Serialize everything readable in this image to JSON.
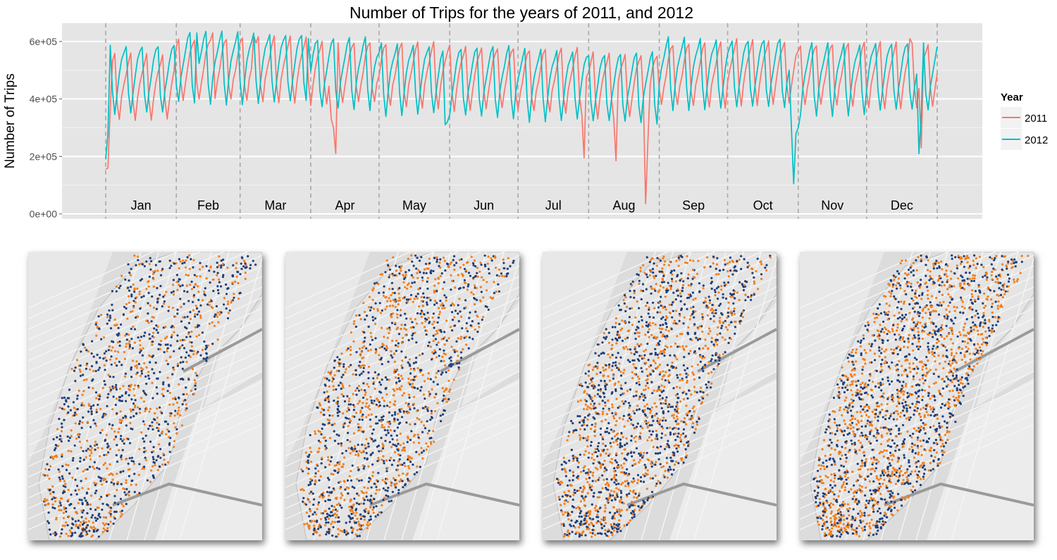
{
  "chart_data": {
    "type": "line",
    "title": "Number of Trips for the years of 2011, and 2012",
    "xlabel": "",
    "ylabel": "Number of Trips",
    "ylim": [
      0,
      650000
    ],
    "yticks": [
      0,
      200000,
      400000,
      600000
    ],
    "ytick_labels": [
      "0e+00",
      "2e+05",
      "4e+05",
      "6e+05"
    ],
    "months": [
      "Jan",
      "Feb",
      "Mar",
      "Apr",
      "May",
      "Jun",
      "Jul",
      "Aug",
      "Sep",
      "Oct",
      "Nov",
      "Dec"
    ],
    "grid": true,
    "legend": {
      "title": "Year",
      "position": "right"
    },
    "series": [
      {
        "name": "2011",
        "color": "#F8766D",
        "weekly_pattern": [
          370000,
          430000,
          470000,
          510000,
          540000,
          560000,
          420000
        ],
        "base_level_by_month": [
          450000,
          510000,
          510000,
          500000,
          490000,
          480000,
          470000,
          455000,
          490000,
          500000,
          490000,
          490000
        ],
        "anomalies": [
          {
            "day": 1,
            "value": 155000
          },
          {
            "day": 2,
            "value": 160000
          },
          {
            "day": 3,
            "value": 370000
          },
          {
            "day": 48,
            "value": 630000
          },
          {
            "day": 66,
            "value": 620000
          },
          {
            "day": 100,
            "value": 330000
          },
          {
            "day": 101,
            "value": 300000
          },
          {
            "day": 102,
            "value": 210000
          },
          {
            "day": 211,
            "value": 195000
          },
          {
            "day": 225,
            "value": 185000
          },
          {
            "day": 238,
            "value": 35000
          },
          {
            "day": 239,
            "value": 250000
          },
          {
            "day": 354,
            "value": 610000
          },
          {
            "day": 359,
            "value": 230000
          }
        ]
      },
      {
        "name": "2012",
        "color": "#00BFC4",
        "weekly_pattern": [
          380000,
          450000,
          500000,
          540000,
          570000,
          590000,
          440000
        ],
        "base_level_by_month": [
          480000,
          520000,
          520000,
          500000,
          480000,
          470000,
          460000,
          450000,
          500000,
          500000,
          480000,
          490000
        ],
        "anomalies": [
          {
            "day": 1,
            "value": 190000
          },
          {
            "day": 2,
            "value": 280000
          },
          {
            "day": 41,
            "value": 630000
          },
          {
            "day": 90,
            "value": 610000
          },
          {
            "day": 150,
            "value": 310000
          },
          {
            "day": 151,
            "value": 320000
          },
          {
            "day": 302,
            "value": 300000
          },
          {
            "day": 303,
            "value": 105000
          },
          {
            "day": 304,
            "value": 280000
          },
          {
            "day": 305,
            "value": 300000
          },
          {
            "day": 358,
            "value": 210000
          },
          {
            "day": 359,
            "value": 350000
          }
        ]
      }
    ]
  },
  "maps": [
    {
      "name": "map-1",
      "color_orange": "#F07F1E",
      "color_blue": "#1F3E78",
      "orange_share": 0.45
    },
    {
      "name": "map-2",
      "color_orange": "#F07F1E",
      "color_blue": "#1F3E78",
      "orange_share": 0.5
    },
    {
      "name": "map-3",
      "color_orange": "#F07F1E",
      "color_blue": "#1F3E78",
      "orange_share": 0.5
    },
    {
      "name": "map-4",
      "color_orange": "#F07F1E",
      "color_blue": "#1F3E78",
      "orange_share": 0.55
    }
  ]
}
